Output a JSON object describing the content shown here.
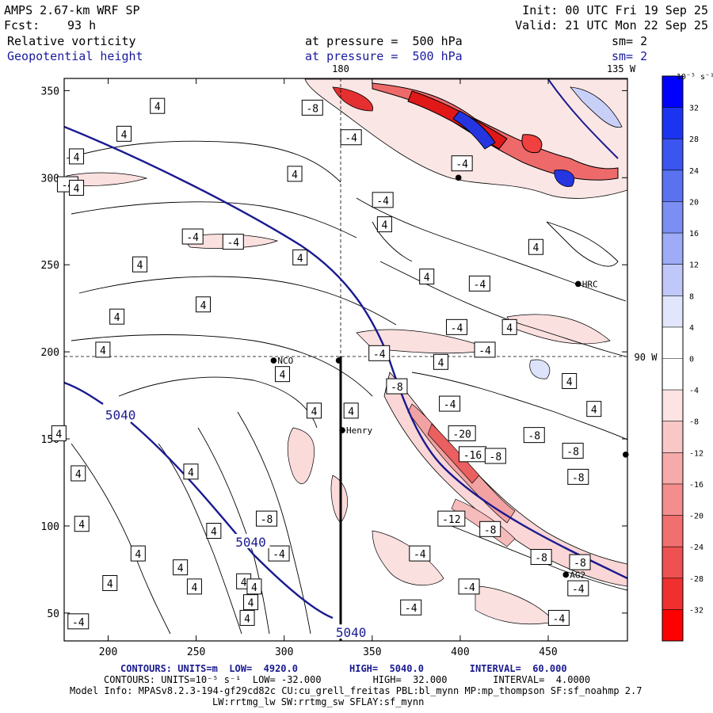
{
  "header": {
    "model": "AMPS 2.67-km WRF SP",
    "init": "Init: 00 UTC Fri 19 Sep 25",
    "fcst_label": "Fcst:",
    "fcst_value": "93 h",
    "valid": "Valid: 21 UTC Mon 22 Sep 25",
    "field1": "Relative vorticity",
    "field1_level": "at pressure =  500 hPa",
    "field1_sm": "sm= 2",
    "field2": "Geopotential height",
    "field2_level": "at pressure =  500 hPa",
    "field2_sm": "sm= 2"
  },
  "map_labels": {
    "lon_180": "180",
    "lon_135w": "135 W",
    "lon_90w": "90 W"
  },
  "stations": [
    {
      "name": "NCO",
      "x": 294,
      "y": 195
    },
    {
      "name": "Henry",
      "x": 333,
      "y": 155
    },
    {
      "name": "HRC",
      "x": 467,
      "y": 239
    },
    {
      "name": "AG2",
      "x": 460,
      "y": 72
    },
    {
      "name": "",
      "x": 331,
      "y": 195
    },
    {
      "name": "",
      "x": 494,
      "y": 141
    },
    {
      "name": "",
      "x": 399,
      "y": 300
    }
  ],
  "contour_labels": [
    {
      "t": "4",
      "x": 228,
      "y": 341
    },
    {
      "t": "4",
      "x": 209,
      "y": 325
    },
    {
      "t": "-8",
      "x": 316,
      "y": 340
    },
    {
      "t": "-4",
      "x": 338,
      "y": 323
    },
    {
      "t": "4",
      "x": 182,
      "y": 312
    },
    {
      "t": "4",
      "x": 306,
      "y": 302
    },
    {
      "t": "-4",
      "x": 401,
      "y": 308
    },
    {
      "t": "-4",
      "x": 177,
      "y": 296
    },
    {
      "t": "4",
      "x": 182,
      "y": 294
    },
    {
      "t": "-4",
      "x": 356,
      "y": 287
    },
    {
      "t": "4",
      "x": 357,
      "y": 273
    },
    {
      "t": "-4",
      "x": 248,
      "y": 266
    },
    {
      "t": "-4",
      "x": 271,
      "y": 263
    },
    {
      "t": "4",
      "x": 443,
      "y": 260
    },
    {
      "t": "4",
      "x": 309,
      "y": 254
    },
    {
      "t": "4",
      "x": 218,
      "y": 250
    },
    {
      "t": "4",
      "x": 381,
      "y": 243
    },
    {
      "t": "-4",
      "x": 411,
      "y": 239
    },
    {
      "t": "4",
      "x": 254,
      "y": 227
    },
    {
      "t": "4",
      "x": 205,
      "y": 220
    },
    {
      "t": "-4",
      "x": 398,
      "y": 214
    },
    {
      "t": "4",
      "x": 428,
      "y": 214
    },
    {
      "t": "4",
      "x": 197,
      "y": 201
    },
    {
      "t": "-4",
      "x": 414,
      "y": 201
    },
    {
      "t": "-4",
      "x": 354,
      "y": 199
    },
    {
      "t": "4",
      "x": 389,
      "y": 194
    },
    {
      "t": "4",
      "x": 299,
      "y": 187
    },
    {
      "t": "4",
      "x": 462,
      "y": 183
    },
    {
      "t": "-8",
      "x": 364,
      "y": 180
    },
    {
      "t": "-4",
      "x": 394,
      "y": 170
    },
    {
      "t": "4",
      "x": 476,
      "y": 167
    },
    {
      "t": "4",
      "x": 317,
      "y": 166
    },
    {
      "t": "4",
      "x": 338,
      "y": 166
    },
    {
      "t": "4",
      "x": 172,
      "y": 153
    },
    {
      "t": "-20",
      "x": 401,
      "y": 153
    },
    {
      "t": "-8",
      "x": 442,
      "y": 152
    },
    {
      "t": "-16",
      "x": 407,
      "y": 141
    },
    {
      "t": "-8",
      "x": 420,
      "y": 140
    },
    {
      "t": "-8",
      "x": 464,
      "y": 143
    },
    {
      "t": "4",
      "x": 247,
      "y": 131
    },
    {
      "t": "4",
      "x": 183,
      "y": 130
    },
    {
      "t": "-8",
      "x": 467,
      "y": 128
    },
    {
      "t": "-8",
      "x": 290,
      "y": 104
    },
    {
      "t": "-12",
      "x": 395,
      "y": 104
    },
    {
      "t": "4",
      "x": 185,
      "y": 101
    },
    {
      "t": "-8",
      "x": 417,
      "y": 98
    },
    {
      "t": "4",
      "x": 260,
      "y": 97
    },
    {
      "t": "-4",
      "x": 297,
      "y": 84
    },
    {
      "t": "-4",
      "x": 377,
      "y": 84
    },
    {
      "t": "-8",
      "x": 446,
      "y": 82
    },
    {
      "t": "-8",
      "x": 468,
      "y": 79
    },
    {
      "t": "4",
      "x": 217,
      "y": 84
    },
    {
      "t": "4",
      "x": 241,
      "y": 76
    },
    {
      "t": "4",
      "x": 277,
      "y": 68
    },
    {
      "t": "4",
      "x": 201,
      "y": 67
    },
    {
      "t": "-4",
      "x": 405,
      "y": 65
    },
    {
      "t": "-4",
      "x": 467,
      "y": 64
    },
    {
      "t": "4",
      "x": 249,
      "y": 65
    },
    {
      "t": "4",
      "x": 283,
      "y": 65
    },
    {
      "t": "-4",
      "x": 372,
      "y": 53
    },
    {
      "t": "4",
      "x": 281,
      "y": 56
    },
    {
      "t": "4",
      "x": 279,
      "y": 47
    },
    {
      "t": "-4",
      "x": 456,
      "y": 47
    },
    {
      "t": "-4",
      "x": 183,
      "y": 45
    }
  ],
  "height_labels": [
    {
      "t": "5040",
      "x": 207,
      "y": 163
    },
    {
      "t": "5040",
      "x": 281,
      "y": 90
    },
    {
      "t": "5040",
      "x": 338,
      "y": 38
    }
  ],
  "footer": {
    "line1_prefix": "CONTOURS:",
    "line1": "UNITS=m  LOW=  4920.0         HIGH=  5040.0        INTERVAL=  60.000",
    "line2_prefix": "CONTOURS:",
    "line2": "UNITS=10⁻⁵ s⁻¹  LOW= -32.000         HIGH=  32.000        INTERVAL=  4.0000",
    "line3": "Model Info: MPASv8.2.3-194-gf29cd82c CU:cu_grell_freitas PBL:bl_mynn MP:mp_thompson SF:sf_noahmp 2.7",
    "line4": "LW:rrtmg_lw SW:rrtmg_sw SFLAY:sf_mynn"
  },
  "colorbar": {
    "unit_label": "10⁻⁵ s⁻¹",
    "levels": [
      36,
      32,
      28,
      24,
      20,
      16,
      12,
      8,
      4,
      0,
      -4,
      -8,
      -12,
      -16,
      -20,
      -24,
      -28,
      -32,
      -36
    ],
    "tick_labels": [
      "32",
      "28",
      "24",
      "20",
      "16",
      "12",
      "8",
      "4",
      "0",
      "-4",
      "-8",
      "-12",
      "-16",
      "-20",
      "-24",
      "-28",
      "-32"
    ],
    "colors": [
      "#0000ff",
      "#1d33f2",
      "#3a55f0",
      "#5a72f0",
      "#7b8ef3",
      "#9eabf6",
      "#c0c8f9",
      "#e2e6fc",
      "#ffffff",
      "#ffffff",
      "#fde3e3",
      "#fac7c7",
      "#f7aaaa",
      "#f48d8d",
      "#f16f6f",
      "#ee5151",
      "#f02f2f",
      "#ff0000"
    ]
  },
  "chart_data": {
    "type": "contour",
    "title": "AMPS 2.67-km WRF SP — Relative vorticity and Geopotential height at 500 hPa",
    "x_ticks": [
      200,
      250,
      300,
      350,
      400,
      450
    ],
    "y_ticks": [
      50,
      100,
      150,
      200,
      250,
      300,
      350
    ],
    "xlim": [
      175,
      495
    ],
    "ylim": [
      34,
      357
    ],
    "height_contour_values_m": [
      5040
    ],
    "vorticity_interval": 4,
    "height_interval": 60
  }
}
